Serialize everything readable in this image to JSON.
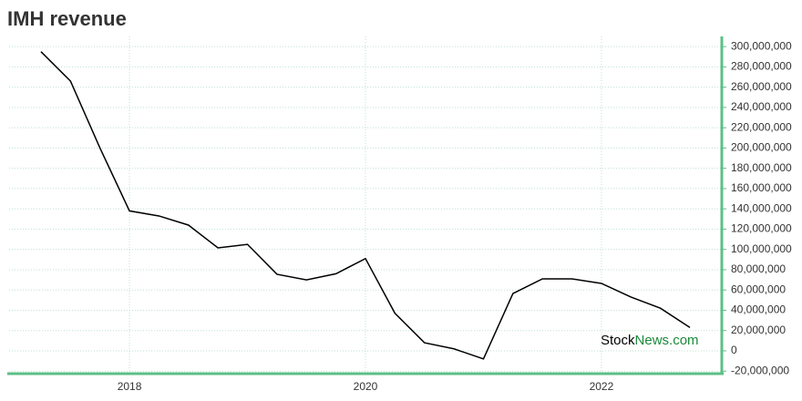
{
  "chart_data": {
    "type": "line",
    "title": "IMH revenue",
    "x": [
      2017.25,
      2017.5,
      2017.75,
      2018,
      2018.25,
      2018.5,
      2018.75,
      2019,
      2019.25,
      2019.5,
      2019.75,
      2020,
      2020.25,
      2020.5,
      2020.75,
      2021,
      2021.25,
      2021.5,
      2021.75,
      2022,
      2022.25,
      2022.5,
      2022.75
    ],
    "series": [
      {
        "name": "IMH revenue",
        "color": "#000000",
        "values": [
          295000000,
          266000000,
          200000000,
          138000000,
          133000000,
          124000000,
          101500000,
          105000000,
          75500000,
          70000000,
          76000000,
          91000000,
          37000000,
          8000000,
          2000000,
          -8000000,
          56500000,
          71000000,
          71000000,
          66500000,
          53000000,
          42000000,
          23000000
        ]
      }
    ],
    "xlim": [
      2016.98,
      2023.02
    ],
    "xticks": [
      2018,
      2020,
      2022
    ],
    "ylim": [
      -22500000,
      310000000
    ],
    "yticks": [
      {
        "value": -20000000,
        "label": "-20,000,000"
      },
      0,
      {
        "value": 20000000,
        "label": "20,000,000"
      },
      {
        "value": 40000000,
        "label": "40,000,000"
      },
      {
        "value": 60000000,
        "label": "60,000,000"
      },
      {
        "value": 80000000,
        "label": "80,000,000"
      },
      {
        "value": 100000000,
        "label": "100,000,000"
      },
      {
        "value": 120000000,
        "label": "120,000,000"
      },
      {
        "value": 140000000,
        "label": "140,000,000"
      },
      {
        "value": 160000000,
        "label": "160,000,000"
      },
      {
        "value": 180000000,
        "label": "180,000,000"
      },
      {
        "value": 200000000,
        "label": "200,000,000"
      },
      {
        "value": 220000000,
        "label": "220,000,000"
      },
      {
        "value": 240000000,
        "label": "240,000,000"
      },
      {
        "value": 260000000,
        "label": "260,000,000"
      },
      {
        "value": 280000000,
        "label": "280,000,000"
      },
      {
        "value": 300000000,
        "label": "300,000,000"
      }
    ],
    "grid": true,
    "axis_color": "#5cbf87",
    "watermark": [
      "Stock",
      "News.com"
    ]
  }
}
